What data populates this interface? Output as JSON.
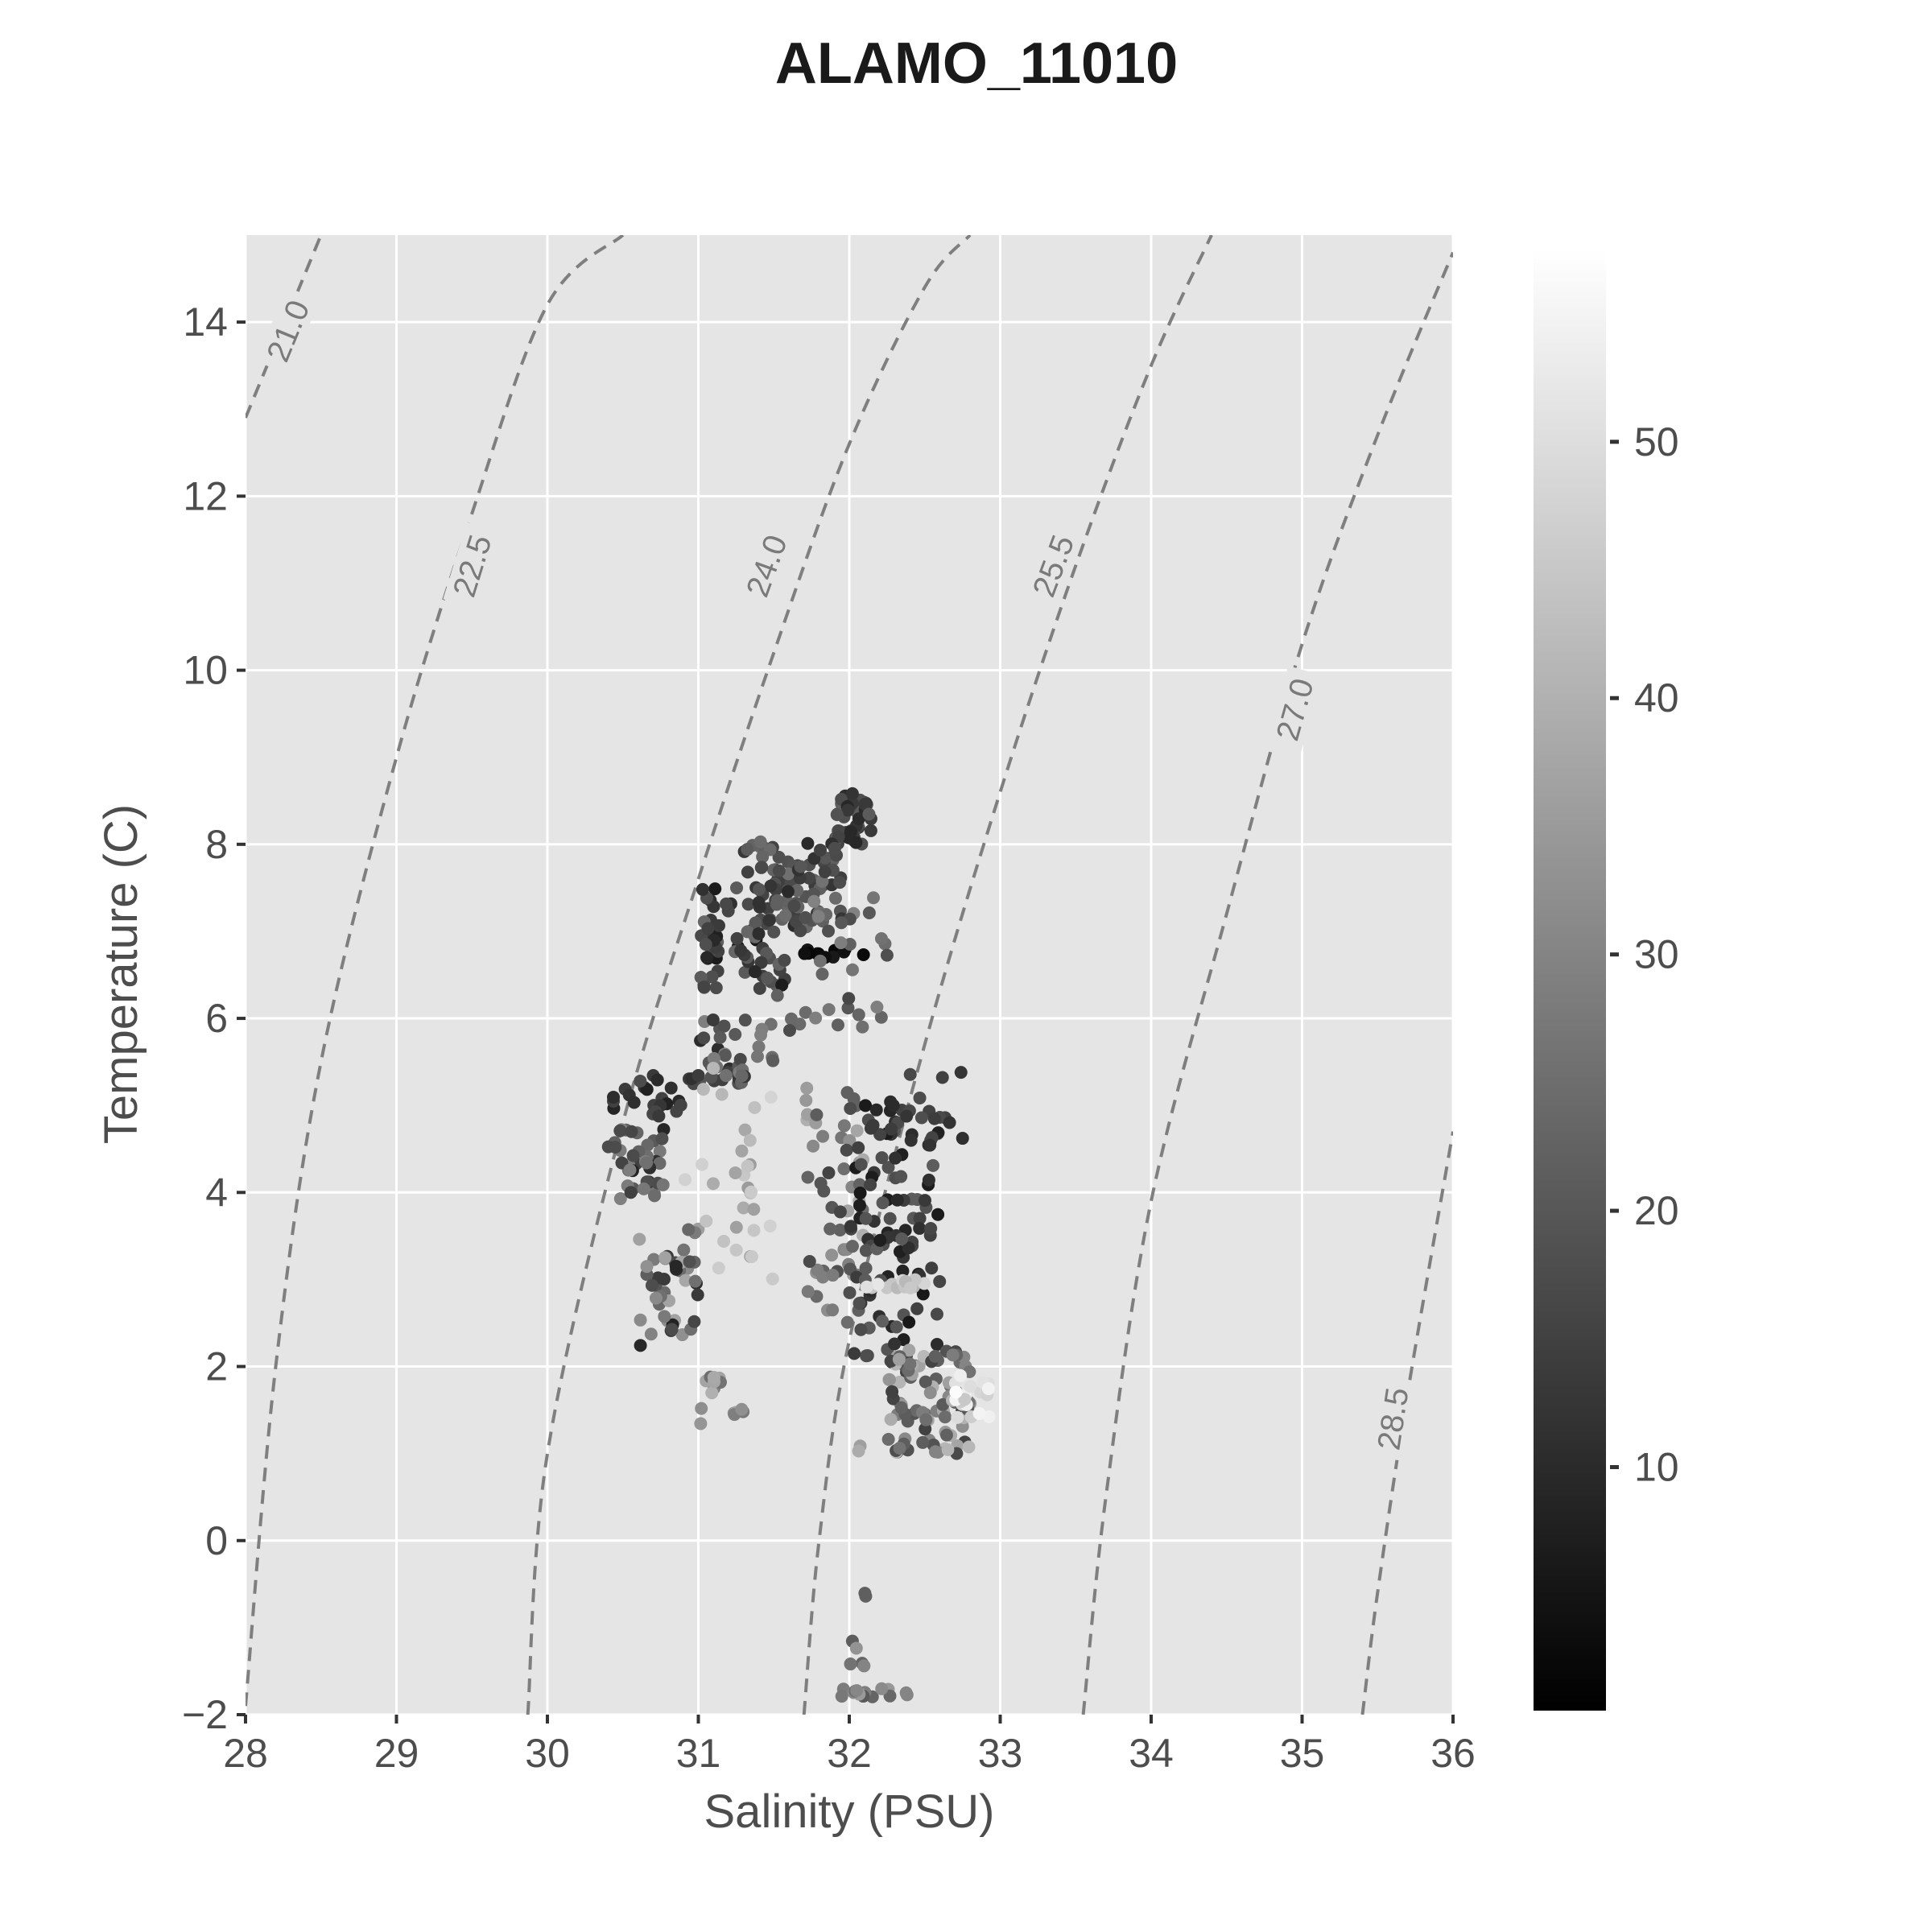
{
  "chart_data": {
    "type": "scatter",
    "title": "ALAMO_11010",
    "xlabel": "Salinity (PSU)",
    "ylabel": "Temperature (C)",
    "xlim": [
      28,
      36
    ],
    "ylim": [
      -2,
      15
    ],
    "xticks": [
      28,
      29,
      30,
      31,
      32,
      33,
      34,
      35,
      36
    ],
    "yticks": [
      -2,
      0,
      2,
      4,
      6,
      8,
      10,
      12,
      14
    ],
    "ytick_labels": [
      "−2",
      "0",
      "2",
      "4",
      "6",
      "8",
      "10",
      "12",
      "14"
    ],
    "grid": true,
    "panel_background": "#e5e5e5",
    "colorbar": {
      "range": [
        0.5,
        57.5
      ],
      "ticks": [
        10,
        20,
        30,
        40,
        50
      ],
      "low_color": "#000000",
      "high_color": "#ffffff"
    },
    "isopycnals": [
      {
        "label": "21.0",
        "points": [
          [
            28.0,
            12.9
          ],
          [
            28.5,
            15.0
          ]
        ],
        "label_at": [
          28.28,
          13.9
        ]
      },
      {
        "label": "22.5",
        "points": [
          [
            28.0,
            -1.9
          ],
          [
            28.2,
            2.0
          ],
          [
            28.5,
            5.5
          ],
          [
            29.0,
            9.0
          ],
          [
            29.5,
            11.8
          ],
          [
            30.0,
            14.2
          ],
          [
            30.5,
            15.0
          ]
        ],
        "label_at": [
          29.5,
          11.2
        ]
      },
      {
        "label": "24.0",
        "points": [
          [
            29.87,
            -2.0
          ],
          [
            30.0,
            1.0
          ],
          [
            30.5,
            4.8
          ],
          [
            31.0,
            7.6
          ],
          [
            31.5,
            10.2
          ],
          [
            32.0,
            12.6
          ],
          [
            32.5,
            14.4
          ],
          [
            32.8,
            15.0
          ]
        ],
        "label_at": [
          31.45,
          11.2
        ]
      },
      {
        "label": "25.5",
        "points": [
          [
            31.7,
            -2.0
          ],
          [
            31.8,
            0.0
          ],
          [
            32.0,
            2.3
          ],
          [
            32.5,
            5.7
          ],
          [
            33.0,
            8.6
          ],
          [
            33.5,
            11.2
          ],
          [
            34.0,
            13.5
          ],
          [
            34.4,
            15.0
          ]
        ],
        "label_at": [
          33.35,
          11.2
        ]
      },
      {
        "label": "27.0",
        "points": [
          [
            33.55,
            -2.0
          ],
          [
            33.7,
            0.5
          ],
          [
            34.0,
            3.9
          ],
          [
            34.5,
            7.2
          ],
          [
            35.0,
            10.3
          ],
          [
            35.5,
            12.7
          ],
          [
            36.0,
            14.8
          ]
        ],
        "label_at": [
          34.95,
          9.55
        ]
      },
      {
        "label": "28.5",
        "points": [
          [
            35.4,
            -2.0
          ],
          [
            35.5,
            -0.6
          ],
          [
            35.7,
            1.7
          ],
          [
            36.0,
            4.7
          ]
        ],
        "label_at": [
          35.6,
          1.4
        ]
      }
    ],
    "clusters": [
      {
        "n": 50,
        "s": [
          31.9,
          32.15
        ],
        "t": [
          8.0,
          8.6
        ],
        "c": [
          8,
          22
        ]
      },
      {
        "n": 90,
        "s": [
          31.3,
          31.95
        ],
        "t": [
          7.0,
          8.1
        ],
        "c": [
          10,
          26
        ]
      },
      {
        "n": 60,
        "s": [
          31.0,
          31.6
        ],
        "t": [
          6.3,
          7.5
        ],
        "c": [
          6,
          24
        ]
      },
      {
        "n": 12,
        "s": [
          31.7,
          32.1
        ],
        "t": [
          6.7,
          6.8
        ],
        "c": [
          2,
          6
        ]
      },
      {
        "n": 40,
        "s": [
          31.5,
          32.3
        ],
        "t": [
          5.8,
          7.4
        ],
        "c": [
          15,
          30
        ]
      },
      {
        "n": 40,
        "s": [
          31.0,
          31.5
        ],
        "t": [
          5.2,
          6.0
        ],
        "c": [
          10,
          30
        ]
      },
      {
        "n": 25,
        "s": [
          30.4,
          31.0
        ],
        "t": [
          4.9,
          5.4
        ],
        "c": [
          8,
          18
        ]
      },
      {
        "n": 40,
        "s": [
          30.4,
          30.8
        ],
        "t": [
          3.9,
          4.9
        ],
        "c": [
          8,
          30
        ]
      },
      {
        "n": 45,
        "s": [
          30.6,
          31.0
        ],
        "t": [
          2.2,
          3.6
        ],
        "c": [
          8,
          38
        ]
      },
      {
        "n": 30,
        "s": [
          30.9,
          31.5
        ],
        "t": [
          3.0,
          5.5
        ],
        "c": [
          35,
          48
        ]
      },
      {
        "n": 15,
        "s": [
          31.0,
          31.3
        ],
        "t": [
          1.3,
          1.9
        ],
        "c": [
          25,
          40
        ]
      },
      {
        "n": 55,
        "s": [
          31.7,
          32.1
        ],
        "t": [
          2.5,
          5.2
        ],
        "c": [
          15,
          40
        ]
      },
      {
        "n": 110,
        "s": [
          32.0,
          32.6
        ],
        "t": [
          2.0,
          5.0
        ],
        "c": [
          6,
          22
        ]
      },
      {
        "n": 15,
        "s": [
          32.1,
          32.5
        ],
        "t": [
          2.9,
          3.0
        ],
        "c": [
          40,
          52
        ]
      },
      {
        "n": 90,
        "s": [
          32.25,
          32.8
        ],
        "t": [
          1.0,
          2.2
        ],
        "c": [
          15,
          42
        ]
      },
      {
        "n": 20,
        "s": [
          32.7,
          32.95
        ],
        "t": [
          1.4,
          1.9
        ],
        "c": [
          45,
          57
        ]
      },
      {
        "n": 18,
        "s": [
          32.2,
          32.8
        ],
        "t": [
          4.5,
          5.4
        ],
        "c": [
          10,
          18
        ]
      },
      {
        "n": 15,
        "s": [
          31.95,
          32.4
        ],
        "t": [
          -1.8,
          -1.7
        ],
        "c": [
          18,
          35
        ]
      },
      {
        "n": 5,
        "s": [
          32.0,
          32.1
        ],
        "t": [
          -1.6,
          -1.1
        ],
        "c": [
          20,
          35
        ]
      },
      {
        "n": 2,
        "s": [
          32.1,
          32.12
        ],
        "t": [
          -0.65,
          -0.55
        ],
        "c": [
          20,
          30
        ]
      },
      {
        "n": 2,
        "s": [
          32.05,
          32.1
        ],
        "t": [
          1.0,
          1.1
        ],
        "c": [
          30,
          40
        ]
      }
    ]
  }
}
